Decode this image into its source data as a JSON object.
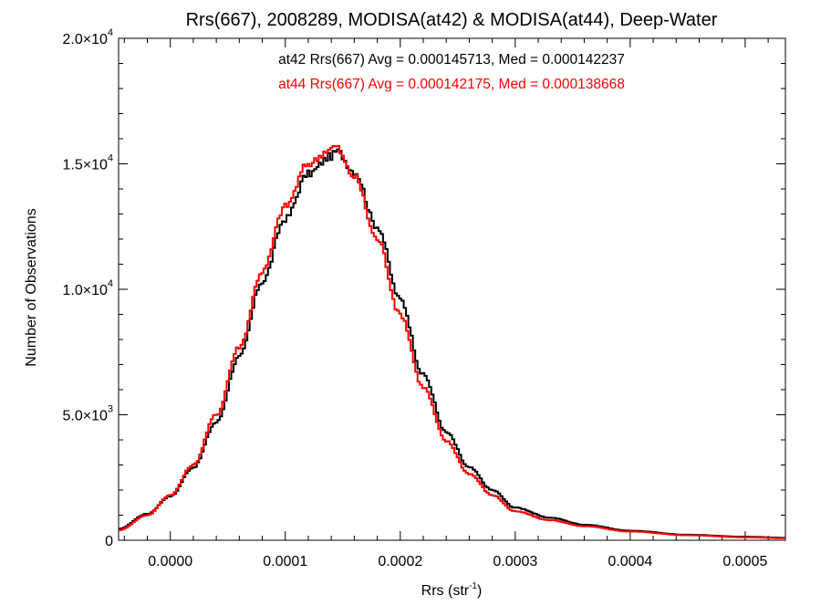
{
  "chart_data": {
    "type": "line",
    "title": "Rrs(667), 2008289, MODISA(at42) & MODISA(at44), Deep-Water",
    "xlabel": {
      "base": "Rrs (str",
      "sup": "-1",
      "end": ")"
    },
    "ylabel": "Number of Observations",
    "xlim": [
      -4.5e-05,
      0.000535
    ],
    "ylim": [
      0,
      20000
    ],
    "x_ticks": [
      {
        "value": 0.0,
        "label": "0.0000"
      },
      {
        "value": 0.0001,
        "label": "0.0001"
      },
      {
        "value": 0.0002,
        "label": "0.0002"
      },
      {
        "value": 0.0003,
        "label": "0.0003"
      },
      {
        "value": 0.0004,
        "label": "0.0004"
      },
      {
        "value": 0.0005,
        "label": "0.0005"
      }
    ],
    "y_ticks": [
      {
        "value": 0,
        "mant": "0",
        "exp": ""
      },
      {
        "value": 5000,
        "mant": "5.0×10",
        "exp": "3"
      },
      {
        "value": 10000,
        "mant": "1.0×10",
        "exp": "4"
      },
      {
        "value": 15000,
        "mant": "1.5×10",
        "exp": "4"
      },
      {
        "value": 20000,
        "mant": "2.0×10",
        "exp": "4"
      }
    ],
    "grid": false,
    "annotations": [
      {
        "text": "at42 Rrs(667) Avg = 0.000145713, Med = 0.000142237",
        "color": "#000000"
      },
      {
        "text": "at44 Rrs(667) Avg = 0.000142175, Med = 0.000138668",
        "color": "#ff0000"
      }
    ],
    "series": [
      {
        "color": "#000000",
        "mean": 0.000145713,
        "median": 0.000142237,
        "profile": [
          [
            -4.5e-05,
            450
          ],
          [
            -2e-05,
            1050
          ],
          [
            0.0,
            1750
          ],
          [
            2e-05,
            2900
          ],
          [
            4e-05,
            4700
          ],
          [
            6e-05,
            7300
          ],
          [
            8e-05,
            10300
          ],
          [
            0.0001,
            12800
          ],
          [
            0.00012,
            14600
          ],
          [
            0.00014,
            15300
          ],
          [
            0.000145,
            15500
          ],
          [
            0.00016,
            14700
          ],
          [
            0.00018,
            12500
          ],
          [
            0.0002,
            9600
          ],
          [
            0.00022,
            6600
          ],
          [
            0.00024,
            4300
          ],
          [
            0.00026,
            2900
          ],
          [
            0.00028,
            2000
          ],
          [
            0.0003,
            1300
          ],
          [
            0.00033,
            900
          ],
          [
            0.00036,
            620
          ],
          [
            0.0004,
            380
          ],
          [
            0.00045,
            220
          ],
          [
            0.0005,
            140
          ],
          [
            0.000535,
            100
          ]
        ]
      },
      {
        "color": "#ff0000",
        "mean": 0.000142175,
        "median": 0.000138668,
        "profile": [
          [
            -4.5e-05,
            400
          ],
          [
            -2e-05,
            1000
          ],
          [
            0.0,
            1800
          ],
          [
            2e-05,
            3000
          ],
          [
            4e-05,
            5000
          ],
          [
            6e-05,
            7700
          ],
          [
            8e-05,
            10700
          ],
          [
            0.0001,
            13300
          ],
          [
            0.00012,
            15000
          ],
          [
            0.00014,
            15600
          ],
          [
            0.000143,
            15700
          ],
          [
            0.00016,
            14500
          ],
          [
            0.00018,
            12000
          ],
          [
            0.0002,
            9000
          ],
          [
            0.00022,
            6100
          ],
          [
            0.00024,
            3950
          ],
          [
            0.00026,
            2650
          ],
          [
            0.00028,
            1800
          ],
          [
            0.0003,
            1150
          ],
          [
            0.00033,
            800
          ],
          [
            0.00036,
            560
          ],
          [
            0.0004,
            350
          ],
          [
            0.00045,
            200
          ],
          [
            0.0005,
            120
          ],
          [
            0.000535,
            80
          ]
        ]
      }
    ]
  }
}
